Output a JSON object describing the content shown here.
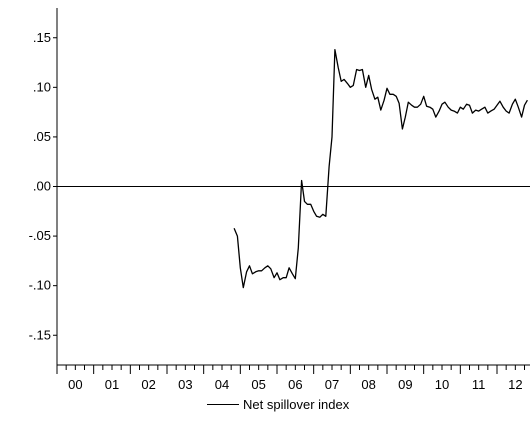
{
  "chart_data": {
    "type": "line",
    "title": "",
    "xlabel": "",
    "ylabel": "",
    "ylim": [
      -0.18,
      0.18
    ],
    "xlim": [
      0,
      12.9
    ],
    "y_ticks": [
      0.15,
      0.1,
      0.05,
      0.0,
      -0.05,
      -0.1,
      -0.15
    ],
    "y_tick_labels": [
      ".15",
      ".10",
      ".05",
      ".00",
      "-.05",
      "-.10",
      "-.15"
    ],
    "x_tick_labels": [
      "00",
      "01",
      "02",
      "03",
      "04",
      "05",
      "06",
      "07",
      "08",
      "09",
      "10",
      "11",
      "12"
    ],
    "zero_line": true,
    "legend_position": "bottom-center",
    "series": [
      {
        "name": "Net spillover index",
        "color": "#000000",
        "x": [
          4.83,
          4.92,
          5.0,
          5.08,
          5.17,
          5.25,
          5.33,
          5.42,
          5.5,
          5.58,
          5.67,
          5.75,
          5.83,
          5.92,
          6.0,
          6.08,
          6.17,
          6.25,
          6.33,
          6.42,
          6.5,
          6.58,
          6.67,
          6.75,
          6.83,
          6.92,
          7.0,
          7.08,
          7.17,
          7.25,
          7.33,
          7.42,
          7.5,
          7.58,
          7.67,
          7.75,
          7.83,
          7.92,
          8.0,
          8.08,
          8.17,
          8.25,
          8.33,
          8.42,
          8.5,
          8.58,
          8.67,
          8.75,
          8.83,
          8.92,
          9.0,
          9.08,
          9.17,
          9.25,
          9.33,
          9.42,
          9.5,
          9.58,
          9.67,
          9.75,
          9.83,
          9.92,
          10.0,
          10.08,
          10.17,
          10.25,
          10.33,
          10.42,
          10.5,
          10.58,
          10.67,
          10.75,
          10.83,
          10.92,
          11.0,
          11.08,
          11.17,
          11.25,
          11.33,
          11.42,
          11.5,
          11.58,
          11.67,
          11.75,
          11.83,
          11.92,
          12.0,
          12.08,
          12.17,
          12.25,
          12.33,
          12.42,
          12.5,
          12.58,
          12.67,
          12.75,
          12.83
        ],
        "values": [
          -0.042,
          -0.05,
          -0.082,
          -0.102,
          -0.086,
          -0.08,
          -0.088,
          -0.086,
          -0.085,
          -0.085,
          -0.082,
          -0.08,
          -0.083,
          -0.092,
          -0.087,
          -0.094,
          -0.092,
          -0.092,
          -0.082,
          -0.088,
          -0.093,
          -0.062,
          0.006,
          -0.015,
          -0.018,
          -0.018,
          -0.025,
          -0.03,
          -0.031,
          -0.028,
          -0.03,
          0.02,
          0.05,
          0.138,
          0.12,
          0.106,
          0.108,
          0.104,
          0.1,
          0.102,
          0.118,
          0.117,
          0.118,
          0.1,
          0.112,
          0.098,
          0.088,
          0.09,
          0.077,
          0.087,
          0.099,
          0.093,
          0.093,
          0.091,
          0.084,
          0.058,
          0.07,
          0.085,
          0.082,
          0.08,
          0.08,
          0.083,
          0.091,
          0.081,
          0.08,
          0.078,
          0.07,
          0.076,
          0.083,
          0.085,
          0.08,
          0.077,
          0.076,
          0.074,
          0.08,
          0.078,
          0.083,
          0.082,
          0.074,
          0.077,
          0.076,
          0.078,
          0.08,
          0.074,
          0.076,
          0.078,
          0.082,
          0.086,
          0.08,
          0.076,
          0.074,
          0.083,
          0.088,
          0.08,
          0.07,
          0.082,
          0.087
        ]
      }
    ]
  }
}
